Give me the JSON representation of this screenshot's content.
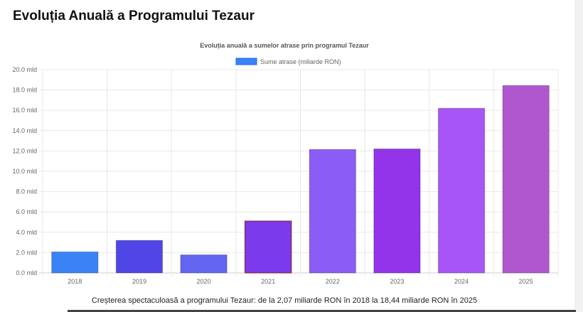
{
  "page_title": "Evoluția Anuală a Programului Tezaur",
  "caption": "Creșterea spectaculoasă a programului Tezaur: de la 2,07 miliarde RON în 2018 la 18,44 miliarde RON în 2025",
  "chart_data": {
    "type": "bar",
    "title": "Evoluția anuală a sumelor atrase prin programul Tezaur",
    "legend": {
      "label": "Sume atrase (miliarde RON)",
      "color": "#3b82f6",
      "placement": "top"
    },
    "categories": [
      "2018",
      "2019",
      "2020",
      "2021",
      "2022",
      "2023",
      "2024",
      "2025"
    ],
    "series": [
      {
        "name": "Sume atrase (miliarde RON)",
        "values": [
          2.07,
          3.2,
          1.78,
          5.1,
          12.15,
          12.2,
          16.2,
          18.44
        ]
      }
    ],
    "colors": [
      "#3b82f6",
      "#4f46e5",
      "#6366f1",
      "#7c3aed",
      "#8b5cf6",
      "#9333ea",
      "#a855f7",
      "#b057d0"
    ],
    "ylim": [
      0,
      20
    ],
    "yticks": [
      "0.0 mld",
      "2.0 mld",
      "4.0 mld",
      "6.0 mld",
      "8.0 mld",
      "10.0 mld",
      "12.0 mld",
      "14.0 mld",
      "16.0 mld",
      "18.0 mld",
      "20.0 mld"
    ],
    "grid": true
  }
}
